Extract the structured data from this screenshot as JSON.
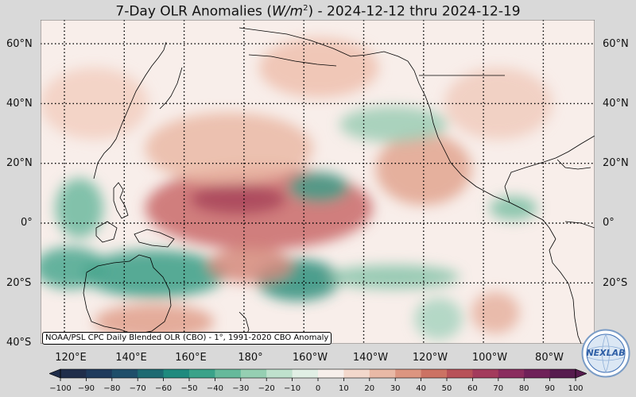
{
  "title": {
    "prefix": "7-Day OLR Anomalies (",
    "unit_base": "W/m",
    "unit_exp": "2",
    "suffix": ") - 2024-12-12 thru 2024-12-19"
  },
  "credit": "NOAA/PSL CPC Daily Blended OLR (CBO) - 1°, 1991-2020 CBO Anomaly",
  "logo_text": "NEXLAB",
  "lat_labels": [
    "60°N",
    "40°N",
    "20°N",
    "0°",
    "20°S",
    "40°S"
  ],
  "lon_labels": [
    "120°E",
    "140°E",
    "160°E",
    "180°",
    "160°W",
    "140°W",
    "120°W",
    "100°W",
    "80°W"
  ],
  "colorbar": {
    "ticks": [
      "−100",
      "−90",
      "−80",
      "−70",
      "−60",
      "−50",
      "−40",
      "−30",
      "−20",
      "−10",
      "0",
      "10",
      "20",
      "30",
      "40",
      "50",
      "60",
      "70",
      "80",
      "90",
      "100"
    ],
    "colors": [
      "#1f2d4a",
      "#1e3a5c",
      "#1f4e6a",
      "#1d6a72",
      "#1f8a7e",
      "#3aa289",
      "#66b99b",
      "#95cfb2",
      "#bfe1cd",
      "#e1efe5",
      "#f7efeb",
      "#f3d8cc",
      "#e9b9a6",
      "#dc9580",
      "#cc7263",
      "#b85158",
      "#a33b5c",
      "#8a2c5e",
      "#6f2159",
      "#561b4e"
    ]
  },
  "anomaly_blobs": [
    {
      "lon": 185,
      "lat": 5,
      "rx": 38,
      "ry": 14,
      "color": "#c96a6a"
    },
    {
      "lon": 178,
      "lat": 8,
      "rx": 16,
      "ry": 5,
      "color": "#a8475a"
    },
    {
      "lon": 175,
      "lat": 25,
      "rx": 28,
      "ry": 12,
      "color": "#eab9a6"
    },
    {
      "lon": 240,
      "lat": 18,
      "rx": 16,
      "ry": 12,
      "color": "#e2a48f"
    },
    {
      "lon": 205,
      "lat": 12,
      "rx": 10,
      "ry": 5,
      "color": "#3f9e8a"
    },
    {
      "lon": 230,
      "lat": 33,
      "rx": 18,
      "ry": 6,
      "color": "#9ccdb5"
    },
    {
      "lon": 150,
      "lat": -17,
      "rx": 24,
      "ry": 8,
      "color": "#3a9e86"
    },
    {
      "lon": 122,
      "lat": -15,
      "rx": 12,
      "ry": 7,
      "color": "#4aa78f"
    },
    {
      "lon": 198,
      "lat": -19,
      "rx": 14,
      "ry": 7,
      "color": "#2f8f7c"
    },
    {
      "lon": 182,
      "lat": -14,
      "rx": 14,
      "ry": 6,
      "color": "#d58a7c"
    },
    {
      "lon": 150,
      "lat": -33,
      "rx": 20,
      "ry": 6,
      "color": "#e0a08c"
    },
    {
      "lon": 230,
      "lat": -18,
      "rx": 22,
      "ry": 4,
      "color": "#88c4aa"
    },
    {
      "lon": 245,
      "lat": -32,
      "rx": 8,
      "ry": 7,
      "color": "#a8d4bf"
    },
    {
      "lon": 264,
      "lat": -30,
      "rx": 8,
      "ry": 7,
      "color": "#e6b1a0"
    },
    {
      "lon": 205,
      "lat": 52,
      "rx": 20,
      "ry": 10,
      "color": "#eebfae"
    },
    {
      "lon": 130,
      "lat": 40,
      "rx": 18,
      "ry": 12,
      "color": "#f2cfc1"
    },
    {
      "lon": 265,
      "lat": 40,
      "rx": 18,
      "ry": 12,
      "color": "#f0cbbd"
    },
    {
      "lon": 125,
      "lat": 5,
      "rx": 8,
      "ry": 10,
      "color": "#6db99f"
    },
    {
      "lon": 270,
      "lat": 5,
      "rx": 8,
      "ry": 4,
      "color": "#7cc0a5"
    }
  ]
}
